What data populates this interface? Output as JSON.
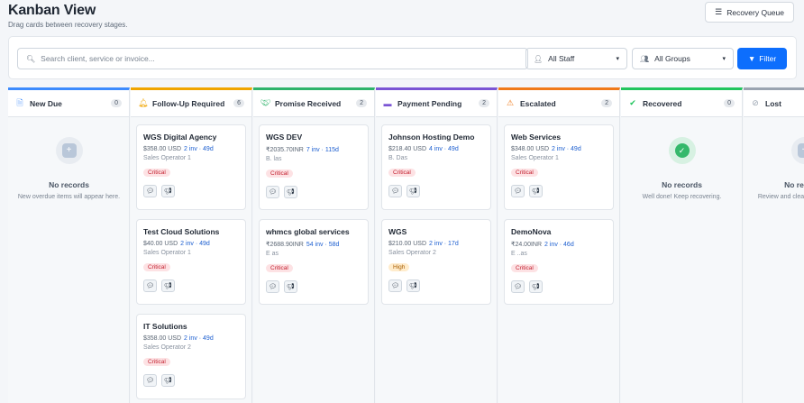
{
  "header": {
    "title": "Kanban View",
    "subtitle": "Drag cards between recovery stages.",
    "queue_button": "Recovery Queue"
  },
  "filters": {
    "search_placeholder": "Search client, service or invoice...",
    "staff_select": "All Staff",
    "groups_select": "All Groups",
    "filter_button": "Filter"
  },
  "colors": {
    "new_due": "#3d8bfd",
    "follow_up": "#f0a500",
    "promise": "#2fb36b",
    "payment": "#7b55d4",
    "escalated": "#f07a1a",
    "recovered": "#22c55e",
    "lost": "#9aa4b1",
    "primary": "#0d6efd"
  },
  "columns": [
    {
      "title": "New Due",
      "count": "0",
      "icon": "file-icon",
      "empty": {
        "title": "No records",
        "text": "New overdue items will appear here."
      },
      "cards": []
    },
    {
      "title": "Follow-Up Required",
      "count": "6",
      "icon": "bell-icon",
      "cards": [
        {
          "name": "WGS Digital Agency",
          "amount": "$358.00 USD",
          "inv": "2 inv · 49d",
          "staff": "Sales Operator 1",
          "priority": "Critical"
        },
        {
          "name": "Test Cloud Solutions",
          "amount": "$40.00 USD",
          "inv": "2 inv · 49d",
          "staff": "Sales Operator 1",
          "priority": "Critical"
        },
        {
          "name": "IT Solutions",
          "amount": "$358.00 USD",
          "inv": "2 inv · 49d",
          "staff": "Sales Operator 2",
          "priority": "Critical"
        }
      ]
    },
    {
      "title": "Promise Received",
      "count": "2",
      "icon": "handshake-icon",
      "cards": [
        {
          "name": "WGS DEV",
          "amount": "₹2035.70INR",
          "inv": "7 inv · 115d",
          "staff": "B.          las",
          "priority": "Critical"
        },
        {
          "name": "whmcs global services",
          "amount": "₹2688.90INR",
          "inv": "54 inv · 58d",
          "staff": "E             as",
          "priority": "Critical"
        }
      ]
    },
    {
      "title": "Payment Pending",
      "count": "2",
      "icon": "credit-card-icon",
      "cards": [
        {
          "name": "Johnson Hosting Demo",
          "amount": "$218.40 USD",
          "inv": "4 inv · 49d",
          "staff": "B.           Das",
          "priority": "Critical"
        },
        {
          "name": "WGS",
          "amount": "$210.00 USD",
          "inv": "2 inv · 17d",
          "staff": "Sales Operator 2",
          "priority": "High"
        }
      ]
    },
    {
      "title": "Escalated",
      "count": "2",
      "icon": "warning-icon",
      "cards": [
        {
          "name": "Web Services",
          "amount": "$348.00 USD",
          "inv": "2 inv · 49d",
          "staff": "Sales Operator 1",
          "priority": "Critical"
        },
        {
          "name": "DemoNova",
          "amount": "₹24.00INR",
          "inv": "2 inv · 46d",
          "staff": "E           ..as",
          "priority": "Critical"
        }
      ]
    },
    {
      "title": "Recovered",
      "count": "0",
      "icon": "check-circle-icon",
      "empty": {
        "title": "No records",
        "text": "Well done! Keep recovering."
      },
      "cards": []
    },
    {
      "title": "Lost",
      "count": "",
      "icon": "ban-icon",
      "empty": {
        "title": "No records",
        "text": "Review and clean up periodically."
      },
      "cards": []
    }
  ]
}
